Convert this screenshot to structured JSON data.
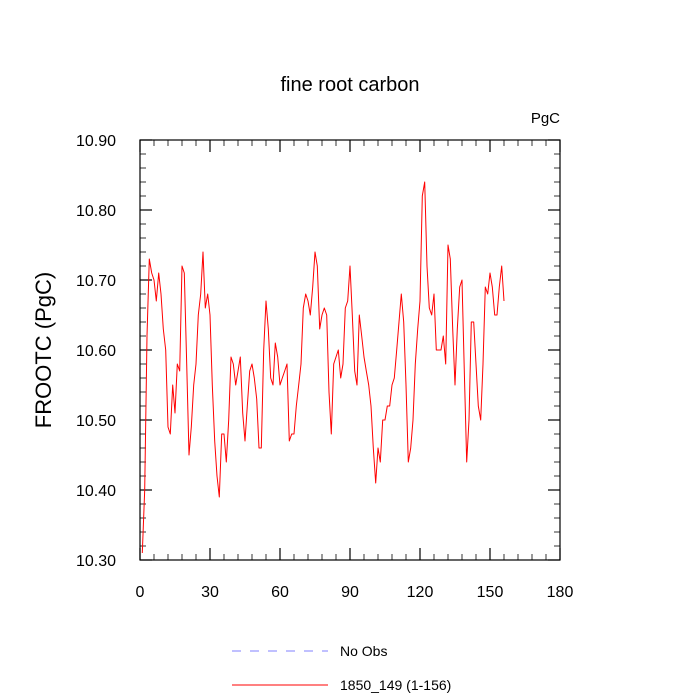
{
  "chart_data": {
    "type": "line",
    "title": "fine root carbon",
    "units": "PgC",
    "xlabel": "",
    "ylabel": "FROOTC  (PgC)",
    "xlim": [
      0,
      180
    ],
    "ylim": [
      10.3,
      10.9
    ],
    "x_ticks": [
      0,
      30,
      60,
      90,
      120,
      150,
      180
    ],
    "x_tick_labels": [
      "0",
      "30",
      "60",
      "90",
      "120",
      "150",
      "180"
    ],
    "y_ticks": [
      10.3,
      10.4,
      10.5,
      10.6,
      10.7,
      10.8,
      10.9
    ],
    "y_tick_labels": [
      "10.30",
      "10.40",
      "10.50",
      "10.60",
      "10.70",
      "10.80",
      "10.90"
    ],
    "legend": [
      {
        "label": "No Obs",
        "color": "#8080ff",
        "style": "dashed"
      },
      {
        "label": "1850_149 (1-156)",
        "color": "#ff0000",
        "style": "solid"
      }
    ],
    "series": [
      {
        "name": "1850_149 (1-156)",
        "color": "#ff0000",
        "x": [
          1,
          2,
          3,
          4,
          5,
          6,
          7,
          8,
          9,
          10,
          11,
          12,
          13,
          14,
          15,
          16,
          17,
          18,
          19,
          20,
          21,
          22,
          23,
          24,
          25,
          26,
          27,
          28,
          29,
          30,
          31,
          32,
          33,
          34,
          35,
          36,
          37,
          38,
          39,
          40,
          41,
          42,
          43,
          44,
          45,
          46,
          47,
          48,
          49,
          50,
          51,
          52,
          53,
          54,
          55,
          56,
          57,
          58,
          59,
          60,
          61,
          62,
          63,
          64,
          65,
          66,
          67,
          68,
          69,
          70,
          71,
          72,
          73,
          74,
          75,
          76,
          77,
          78,
          79,
          80,
          81,
          82,
          83,
          84,
          85,
          86,
          87,
          88,
          89,
          90,
          91,
          92,
          93,
          94,
          95,
          96,
          97,
          98,
          99,
          100,
          101,
          102,
          103,
          104,
          105,
          106,
          107,
          108,
          109,
          110,
          111,
          112,
          113,
          114,
          115,
          116,
          117,
          118,
          119,
          120,
          121,
          122,
          123,
          124,
          125,
          126,
          127,
          128,
          129,
          130,
          131,
          132,
          133,
          134,
          135,
          136,
          137,
          138,
          139,
          140,
          141,
          142,
          143,
          144,
          145,
          146,
          147,
          148,
          149,
          150,
          151,
          152,
          153,
          154,
          155,
          156
        ],
        "values": [
          10.31,
          10.4,
          10.62,
          10.73,
          10.71,
          10.7,
          10.67,
          10.71,
          10.68,
          10.63,
          10.6,
          10.49,
          10.48,
          10.55,
          10.51,
          10.58,
          10.57,
          10.72,
          10.71,
          10.58,
          10.45,
          10.49,
          10.55,
          10.58,
          10.65,
          10.68,
          10.74,
          10.66,
          10.68,
          10.65,
          10.55,
          10.47,
          10.42,
          10.39,
          10.48,
          10.48,
          10.44,
          10.5,
          10.59,
          10.58,
          10.55,
          10.57,
          10.59,
          10.51,
          10.47,
          10.52,
          10.57,
          10.58,
          10.56,
          10.53,
          10.46,
          10.46,
          10.6,
          10.67,
          10.63,
          10.56,
          10.55,
          10.61,
          10.59,
          10.55,
          10.56,
          10.57,
          10.58,
          10.47,
          10.48,
          10.48,
          10.52,
          10.55,
          10.58,
          10.66,
          10.68,
          10.67,
          10.65,
          10.69,
          10.74,
          10.72,
          10.63,
          10.65,
          10.66,
          10.65,
          10.54,
          10.48,
          10.58,
          10.59,
          10.6,
          10.56,
          10.58,
          10.66,
          10.67,
          10.72,
          10.65,
          10.57,
          10.55,
          10.65,
          10.62,
          10.59,
          10.57,
          10.55,
          10.52,
          10.46,
          10.41,
          10.46,
          10.44,
          10.5,
          10.5,
          10.52,
          10.52,
          10.55,
          10.56,
          10.6,
          10.64,
          10.68,
          10.64,
          10.55,
          10.44,
          10.46,
          10.5,
          10.58,
          10.63,
          10.67,
          10.82,
          10.84,
          10.72,
          10.66,
          10.65,
          10.68,
          10.6,
          10.6,
          10.6,
          10.62,
          10.58,
          10.75,
          10.73,
          10.63,
          10.55,
          10.63,
          10.69,
          10.7,
          10.57,
          10.44,
          10.5,
          10.64,
          10.64,
          10.58,
          10.52,
          10.5,
          10.58,
          10.69,
          10.68,
          10.71,
          10.69,
          10.65,
          10.65,
          10.69,
          10.72,
          10.67
        ]
      }
    ]
  }
}
